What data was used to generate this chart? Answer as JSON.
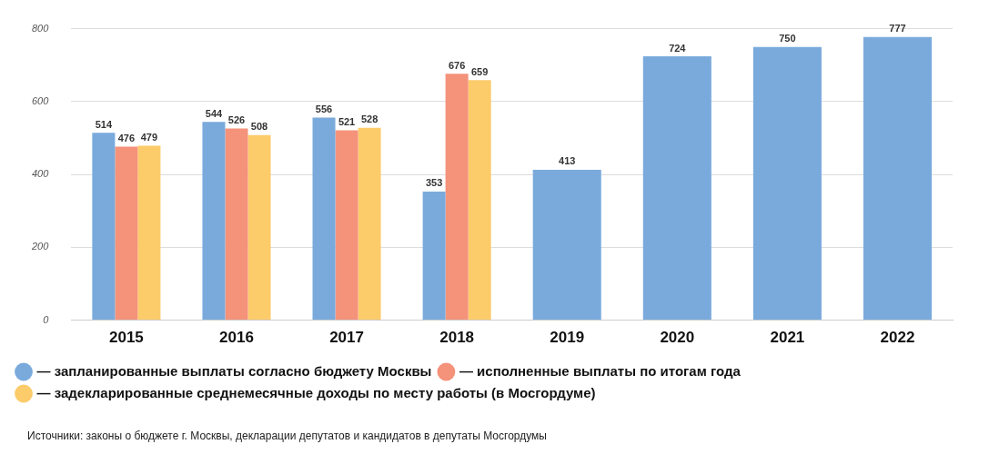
{
  "chart_data": {
    "type": "bar",
    "categories": [
      "2015",
      "2016",
      "2017",
      "2018",
      "2019",
      "2020",
      "2021",
      "2022"
    ],
    "series": [
      {
        "name": "— запланированные выплаты согласно бюджету Москвы",
        "color": "#7aaadc",
        "values": [
          514,
          544,
          556,
          353,
          413,
          724,
          750,
          777
        ]
      },
      {
        "name": "— исполненные выплаты по итогам года",
        "color": "#f4927a",
        "values": [
          476,
          526,
          521,
          676,
          null,
          null,
          null,
          null
        ]
      },
      {
        "name": "— задекларированные среднемесячные доходы по месту работы (в Мосгордуме)",
        "color": "#fccb6a",
        "values": [
          479,
          508,
          528,
          659,
          null,
          null,
          null,
          null
        ]
      }
    ],
    "ylim": [
      0,
      800
    ],
    "yticks": [
      0,
      200,
      400,
      600,
      800
    ],
    "grid": "y",
    "legend": "bottom",
    "data_labels": true,
    "annotations": [
      "Источники: законы о бюджете г. Москвы, декларации депутатов и кандидатов в депутаты Мосгордумы"
    ]
  }
}
